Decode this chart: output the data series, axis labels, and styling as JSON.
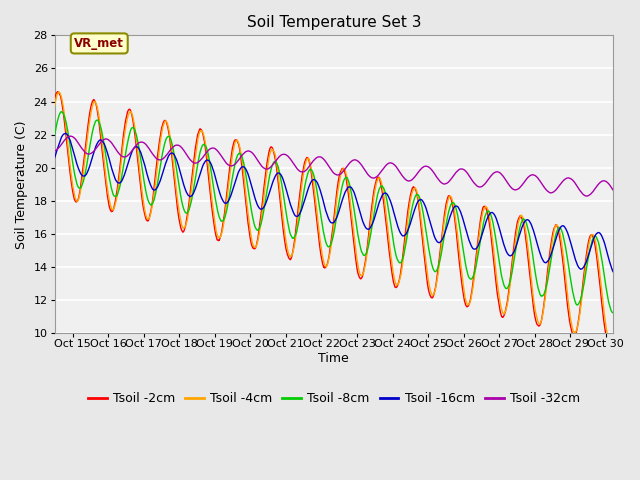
{
  "title": "Soil Temperature Set 3",
  "xlabel": "Time",
  "ylabel": "Soil Temperature (C)",
  "ylim": [
    10,
    28
  ],
  "yticks": [
    10,
    12,
    14,
    16,
    18,
    20,
    22,
    24,
    26,
    28
  ],
  "xlim_days": [
    14.5,
    30.2
  ],
  "xtick_days": [
    15,
    16,
    17,
    18,
    19,
    20,
    21,
    22,
    23,
    24,
    25,
    26,
    27,
    28,
    29,
    30
  ],
  "xtick_labels": [
    "Oct 15",
    "Oct 16",
    "Oct 17",
    "Oct 18",
    "Oct 19",
    "Oct 20",
    "Oct 21",
    "Oct 22",
    "Oct 23",
    "Oct 24",
    "Oct 25",
    "Oct 26",
    "Oct 27",
    "Oct 28",
    "Oct 29",
    "Oct 30"
  ],
  "annotation_text": "VR_met",
  "colors": {
    "2cm": "#FF0000",
    "4cm": "#FFA500",
    "8cm": "#00CC00",
    "16cm": "#0000CC",
    "32cm": "#AA00AA"
  },
  "legend_labels": [
    "Tsoil -2cm",
    "Tsoil -4cm",
    "Tsoil -8cm",
    "Tsoil -16cm",
    "Tsoil -32cm"
  ],
  "bg_color": "#E8E8E8",
  "plot_bg": "#F0F0F0",
  "grid_color": "#FFFFFF",
  "title_fontsize": 11,
  "label_fontsize": 9,
  "tick_fontsize": 8,
  "legend_fontsize": 9
}
